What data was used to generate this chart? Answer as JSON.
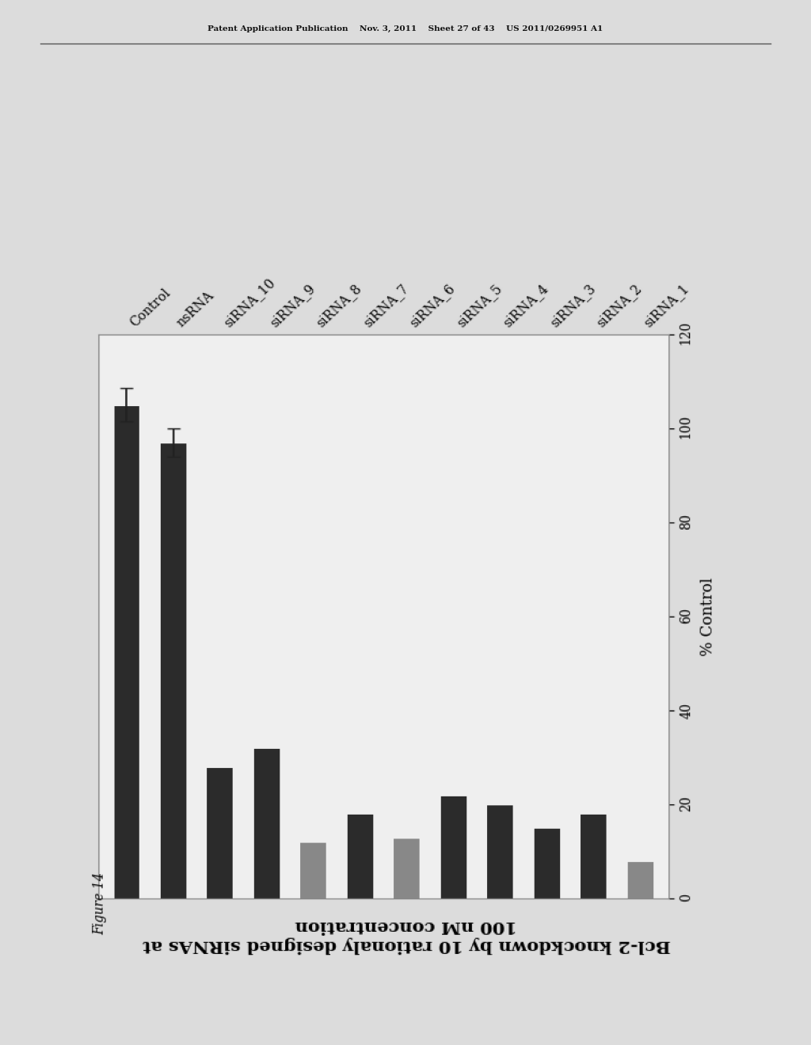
{
  "header": "Patent Application Publication    Nov. 3, 2011    Sheet 27 of 43    US 2011/0269951 A1",
  "figure_label": "Figure 14",
  "title": "Bcl-2 knockdown by 10 rationaly designed siRNAs at\n100 nM concentration",
  "xlabel": "% Control",
  "categories": [
    "Control",
    "nsRNA",
    "siRNA_10",
    "siRNA_9",
    "siRNA_8",
    "siRNA_7",
    "siRNA_6",
    "siRNA_5",
    "siRNA_4",
    "siRNA_3",
    "siRNA_2",
    "siRNA_1"
  ],
  "values": [
    105,
    97,
    28,
    32,
    12,
    18,
    13,
    22,
    20,
    15,
    18,
    8
  ],
  "bar_colors": [
    "#2b2b2b",
    "#2b2b2b",
    "#2b2b2b",
    "#2b2b2b",
    "#888888",
    "#2b2b2b",
    "#888888",
    "#2b2b2b",
    "#2b2b2b",
    "#2b2b2b",
    "#2b2b2b",
    "#888888"
  ],
  "error_bars": [
    3.5,
    3.0,
    0,
    0,
    0,
    0,
    0,
    0,
    0,
    0,
    0,
    0
  ],
  "xlim": [
    0,
    120
  ],
  "xticks": [
    0,
    20,
    40,
    60,
    80,
    100,
    120
  ],
  "bg_outer": "#c8c8c8",
  "bg_page": "#dcdcdc",
  "bg_plot": "#efefef",
  "bar_height": 0.55
}
